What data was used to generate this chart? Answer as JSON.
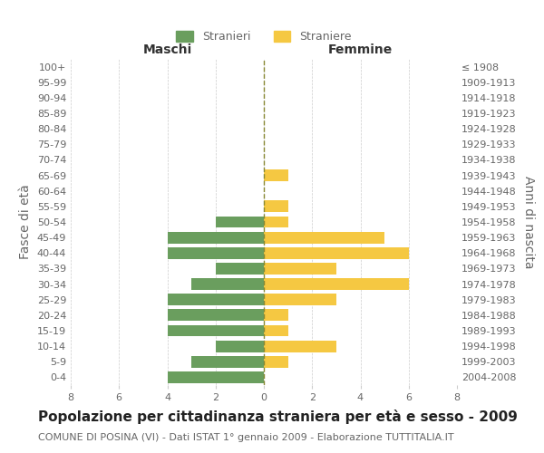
{
  "age_groups": [
    "0-4",
    "5-9",
    "10-14",
    "15-19",
    "20-24",
    "25-29",
    "30-34",
    "35-39",
    "40-44",
    "45-49",
    "50-54",
    "55-59",
    "60-64",
    "65-69",
    "70-74",
    "75-79",
    "80-84",
    "85-89",
    "90-94",
    "95-99",
    "100+"
  ],
  "birth_years": [
    "2004-2008",
    "1999-2003",
    "1994-1998",
    "1989-1993",
    "1984-1988",
    "1979-1983",
    "1974-1978",
    "1969-1973",
    "1964-1968",
    "1959-1963",
    "1954-1958",
    "1949-1953",
    "1944-1948",
    "1939-1943",
    "1934-1938",
    "1929-1933",
    "1924-1928",
    "1919-1923",
    "1914-1918",
    "1909-1913",
    "≤ 1908"
  ],
  "maschi": [
    4,
    3,
    2,
    4,
    4,
    4,
    3,
    2,
    4,
    4,
    2,
    0,
    0,
    0,
    0,
    0,
    0,
    0,
    0,
    0,
    0
  ],
  "femmine": [
    0,
    1,
    3,
    1,
    1,
    3,
    6,
    3,
    6,
    5,
    1,
    1,
    0,
    1,
    0,
    0,
    0,
    0,
    0,
    0,
    0
  ],
  "color_maschi": "#6a9e5e",
  "color_femmine": "#f5c842",
  "background_color": "#ffffff",
  "grid_color": "#cccccc",
  "axis_label_color": "#666666",
  "title": "Popolazione per cittadinanza straniera per età e sesso - 2009",
  "subtitle": "COMUNE DI POSINA (VI) - Dati ISTAT 1° gennaio 2009 - Elaborazione TUTTITALIA.IT",
  "ylabel_left": "Fasce di età",
  "ylabel_right": "Anni di nascita",
  "xlabel_left": "Maschi",
  "xlabel_right": "Femmine",
  "legend_maschi": "Stranieri",
  "legend_femmine": "Straniere",
  "xlim": 8,
  "title_fontsize": 11,
  "subtitle_fontsize": 8,
  "tick_fontsize": 8,
  "label_fontsize": 10
}
